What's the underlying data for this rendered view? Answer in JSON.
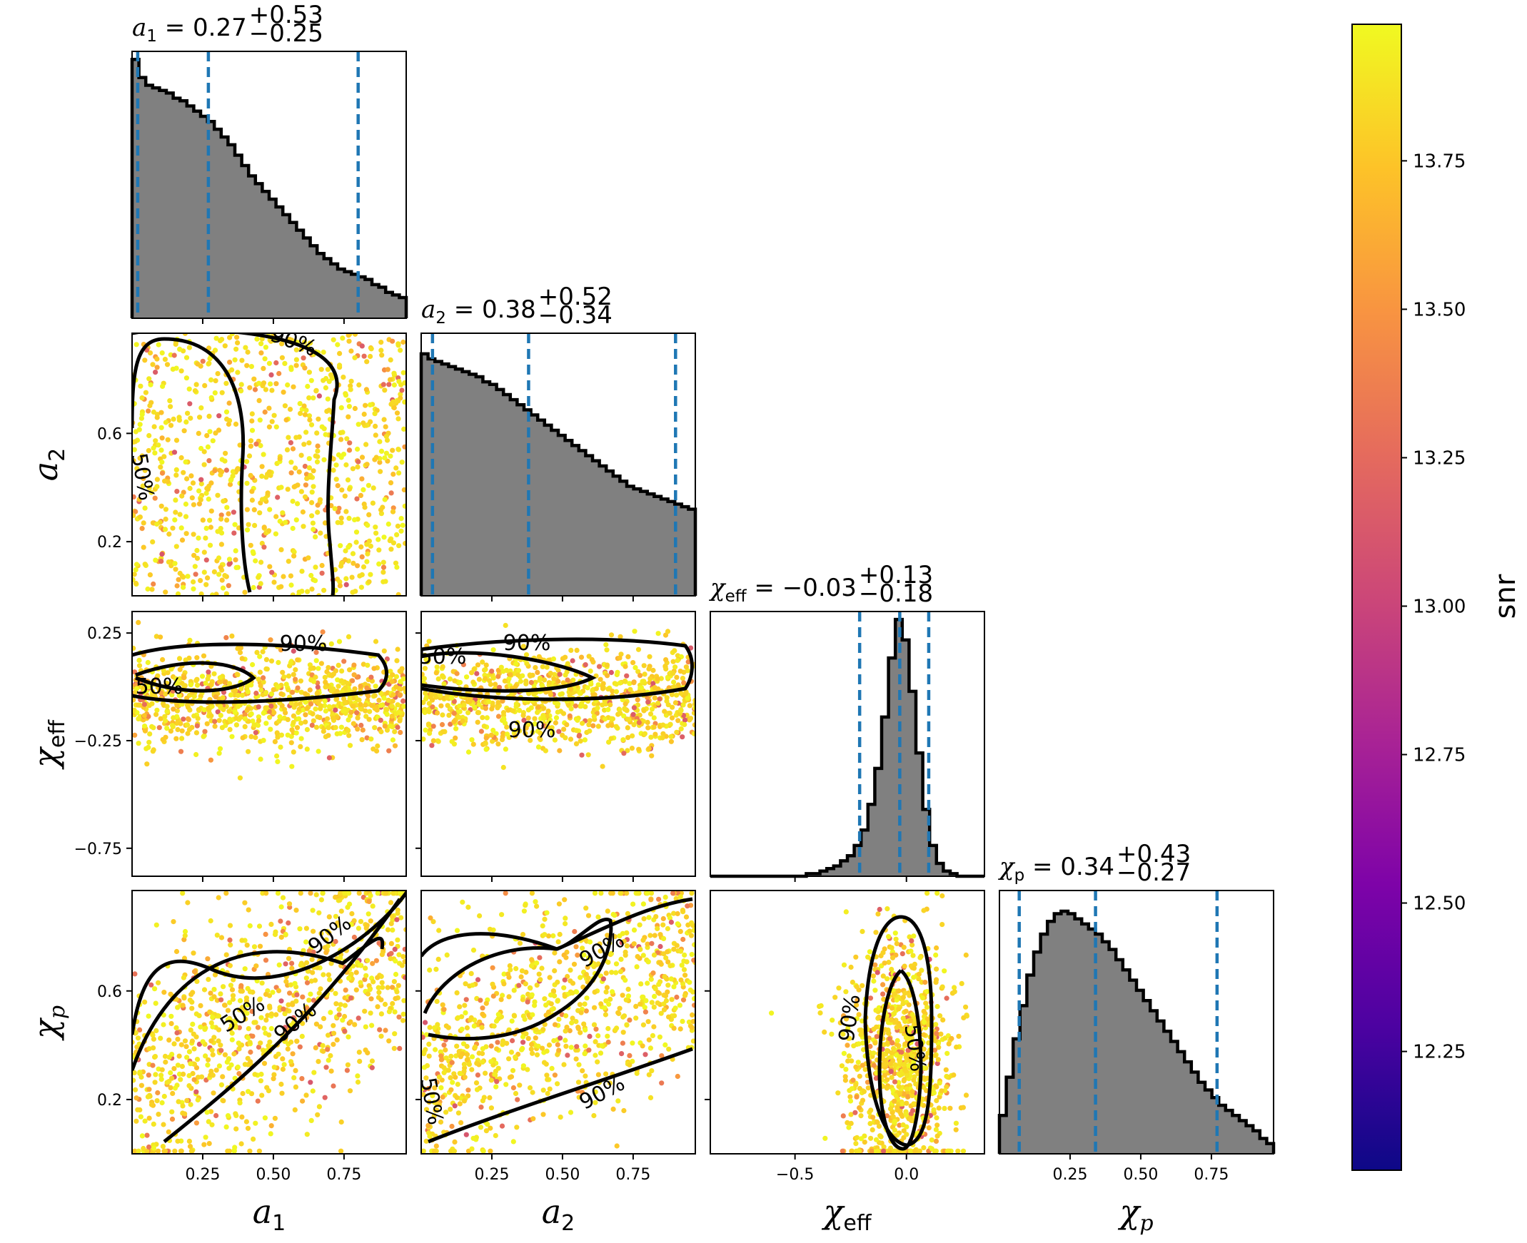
{
  "chart_data": {
    "type": "corner",
    "colormap": "plasma",
    "colors": {
      "hist_fill": "#808080",
      "hist_edge": "#000000",
      "quantile_line": "#1f77b4",
      "contour": "#000000"
    },
    "params": [
      {
        "key": "a1",
        "symbol": "a",
        "sub": "1",
        "median": "0.27",
        "plus": "+0.53",
        "minus": "−0.25",
        "median_val": 0.27,
        "plus_val": 0.53,
        "minus_val": 0.25,
        "range": [
          0,
          0.97
        ],
        "ticks": [
          0.25,
          0.5,
          0.75
        ],
        "tick_labels": [
          "0.25",
          "0.50",
          "0.75"
        ],
        "hist_heights": [
          1.0,
          0.93,
          0.9,
          0.89,
          0.88,
          0.87,
          0.85,
          0.84,
          0.82,
          0.8,
          0.78,
          0.76,
          0.73,
          0.7,
          0.67,
          0.63,
          0.59,
          0.55,
          0.52,
          0.49,
          0.46,
          0.43,
          0.4,
          0.37,
          0.34,
          0.31,
          0.28,
          0.25,
          0.23,
          0.21,
          0.19,
          0.18,
          0.17,
          0.16,
          0.15,
          0.13,
          0.12,
          0.1,
          0.09,
          0.08
        ]
      },
      {
        "key": "a2",
        "symbol": "a",
        "sub": "2",
        "median": "0.38",
        "plus": "+0.52",
        "minus": "−0.34",
        "median_val": 0.38,
        "plus_val": 0.52,
        "minus_val": 0.34,
        "range": [
          0,
          0.97
        ],
        "ticks": [
          0.2,
          0.6
        ],
        "tick_labels": [
          "0.2",
          "0.6"
        ],
        "xticks": [
          0.25,
          0.5,
          0.75
        ],
        "xtick_labels": [
          "0.25",
          "0.50",
          "0.75"
        ],
        "hist_heights": [
          0.95,
          0.93,
          0.92,
          0.91,
          0.9,
          0.89,
          0.88,
          0.87,
          0.86,
          0.84,
          0.83,
          0.81,
          0.79,
          0.77,
          0.75,
          0.73,
          0.71,
          0.69,
          0.67,
          0.65,
          0.63,
          0.61,
          0.59,
          0.57,
          0.55,
          0.53,
          0.51,
          0.49,
          0.47,
          0.45,
          0.43,
          0.42,
          0.41,
          0.4,
          0.39,
          0.38,
          0.37,
          0.36,
          0.35,
          0.34
        ]
      },
      {
        "key": "chi_eff",
        "symbol": "χ",
        "sub": "eff",
        "median": "−0.03",
        "plus": "+0.13",
        "minus": "−0.18",
        "median_val": -0.03,
        "plus_val": 0.13,
        "minus_val": 0.18,
        "range": [
          -0.88,
          0.35
        ],
        "ticks": [
          0.25,
          -0.25,
          -0.75
        ],
        "tick_labels": [
          "0.25",
          "−0.25",
          "−0.75"
        ],
        "xticks": [
          -0.5,
          0.0
        ],
        "xtick_labels": [
          "−0.5",
          "0.0"
        ],
        "hist_heights": [
          0.0,
          0.0,
          0.0,
          0.0,
          0.0,
          0.0,
          0.0,
          0.0,
          0.0,
          0.0,
          0.0,
          0.0,
          0.0,
          0.0,
          0.01,
          0.01,
          0.02,
          0.03,
          0.04,
          0.06,
          0.08,
          0.12,
          0.18,
          0.28,
          0.42,
          0.62,
          0.85,
          1.0,
          0.92,
          0.72,
          0.48,
          0.26,
          0.12,
          0.05,
          0.02,
          0.01,
          0.0,
          0.0,
          0.0,
          0.0
        ]
      },
      {
        "key": "chi_p",
        "symbol": "χ",
        "sub": "p",
        "median": "0.34",
        "plus": "+0.43",
        "minus": "−0.27",
        "median_val": 0.34,
        "plus_val": 0.43,
        "minus_val": 0.27,
        "range": [
          0,
          0.97
        ],
        "ticks": [
          0.2,
          0.6
        ],
        "tick_labels": [
          "0.2",
          "0.6"
        ],
        "xticks": [
          0.25,
          0.5,
          0.75
        ],
        "xtick_labels": [
          "0.25",
          "0.50",
          "0.75"
        ],
        "hist_heights": [
          0.15,
          0.3,
          0.45,
          0.58,
          0.7,
          0.79,
          0.86,
          0.91,
          0.94,
          0.95,
          0.94,
          0.92,
          0.9,
          0.88,
          0.86,
          0.83,
          0.8,
          0.76,
          0.72,
          0.68,
          0.64,
          0.6,
          0.56,
          0.52,
          0.48,
          0.44,
          0.4,
          0.36,
          0.32,
          0.28,
          0.25,
          0.22,
          0.19,
          0.17,
          0.15,
          0.13,
          0.11,
          0.09,
          0.06,
          0.04
        ]
      }
    ],
    "contour_labels": [
      "50%",
      "90%"
    ],
    "colorbar": {
      "label": "snr",
      "range": [
        12.05,
        13.98
      ],
      "ticks": [
        12.25,
        12.5,
        12.75,
        13.0,
        13.25,
        13.5,
        13.75
      ],
      "tick_labels": [
        "12.25",
        "12.50",
        "12.75",
        "13.00",
        "13.25",
        "13.50",
        "13.75"
      ]
    }
  }
}
